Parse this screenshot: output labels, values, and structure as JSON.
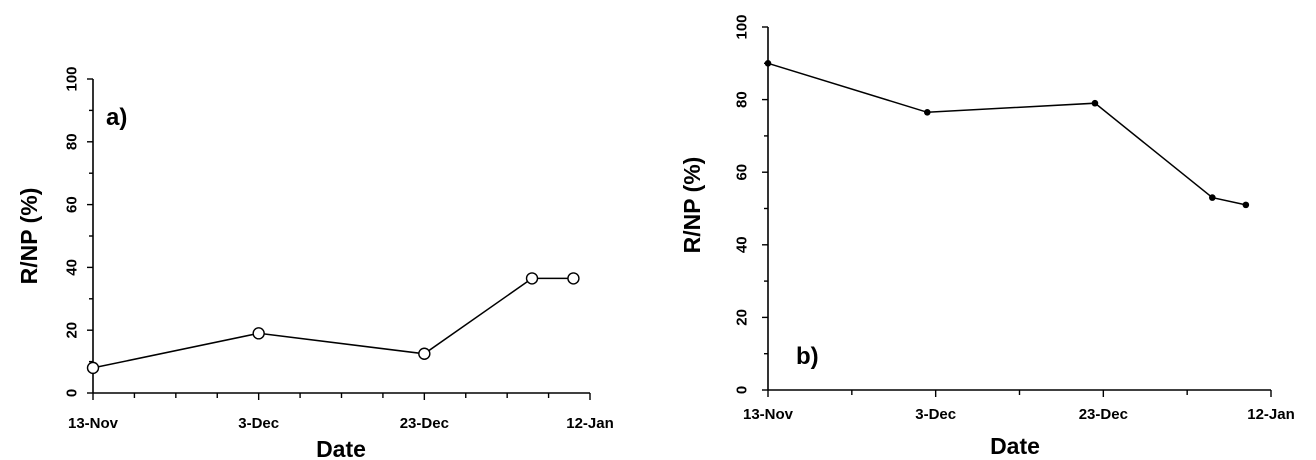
{
  "chart_data": [
    {
      "type": "line",
      "panel_label": "a)",
      "xlabel": "Date",
      "ylabel": "R/NP (%)",
      "x_tick_labels": [
        "13-Nov",
        "3-Dec",
        "23-Dec",
        "12-Jan"
      ],
      "xlim": [
        "13-Nov",
        "12-Jan"
      ],
      "ylim": [
        0,
        100
      ],
      "y_ticks": [
        0,
        20,
        40,
        60,
        80,
        100
      ],
      "marker": "open-circle",
      "series": [
        {
          "x": [
            "13-Nov",
            "3-Dec",
            "23-Dec",
            "5-Jan",
            "10-Jan"
          ],
          "values": [
            8,
            19,
            12.5,
            36.5,
            36.5
          ]
        }
      ]
    },
    {
      "type": "line",
      "panel_label": "b)",
      "xlabel": "Date",
      "ylabel": "R/NP (%)",
      "x_tick_labels": [
        "13-Nov",
        "3-Dec",
        "23-Dec",
        "12-Jan"
      ],
      "xlim": [
        "13-Nov",
        "12-Jan"
      ],
      "ylim": [
        0,
        100
      ],
      "y_ticks": [
        0,
        20,
        40,
        60,
        80,
        100
      ],
      "marker": "filled-dot",
      "series": [
        {
          "x": [
            "13-Nov",
            "2-Dec",
            "22-Dec",
            "5-Jan",
            "9-Jan"
          ],
          "values": [
            90,
            76.5,
            79,
            53,
            51
          ]
        }
      ]
    }
  ]
}
